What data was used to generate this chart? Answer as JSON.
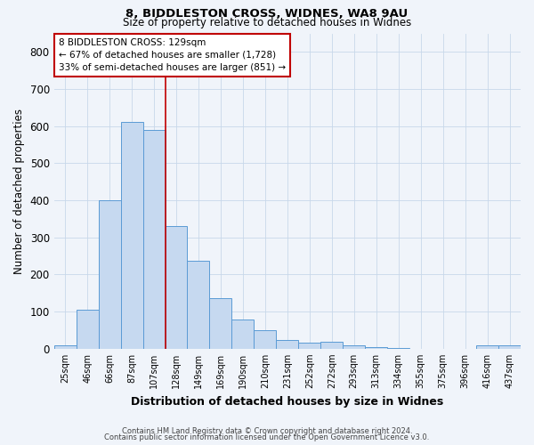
{
  "title1": "8, BIDDLESTON CROSS, WIDNES, WA8 9AU",
  "title2": "Size of property relative to detached houses in Widnes",
  "xlabel": "Distribution of detached houses by size in Widnes",
  "ylabel": "Number of detached properties",
  "bin_labels": [
    "25sqm",
    "46sqm",
    "66sqm",
    "87sqm",
    "107sqm",
    "128sqm",
    "149sqm",
    "169sqm",
    "190sqm",
    "210sqm",
    "231sqm",
    "252sqm",
    "272sqm",
    "293sqm",
    "313sqm",
    "334sqm",
    "355sqm",
    "375sqm",
    "396sqm",
    "416sqm",
    "437sqm"
  ],
  "bar_values": [
    8,
    106,
    400,
    611,
    590,
    330,
    237,
    136,
    79,
    51,
    24,
    16,
    18,
    8,
    4,
    2,
    0,
    0,
    0,
    8,
    10
  ],
  "bar_color": "#c6d9f0",
  "bar_edge_color": "#5b9bd5",
  "vline_x": 5.0,
  "vline_color": "#c00000",
  "annotation_line1": "8 BIDDLESTON CROSS: 129sqm",
  "annotation_line2": "← 67% of detached houses are smaller (1,728)",
  "annotation_line3": "33% of semi-detached houses are larger (851) →",
  "annotation_box_color": "#ffffff",
  "annotation_box_edge": "#c00000",
  "footnote1": "Contains HM Land Registry data © Crown copyright and database right 2024.",
  "footnote2": "Contains public sector information licensed under the Open Government Licence v3.0.",
  "ylim": [
    0,
    850
  ],
  "yticks": [
    0,
    100,
    200,
    300,
    400,
    500,
    600,
    700,
    800
  ],
  "background_color": "#f0f4fa",
  "grid_color": "#c8d8ea"
}
